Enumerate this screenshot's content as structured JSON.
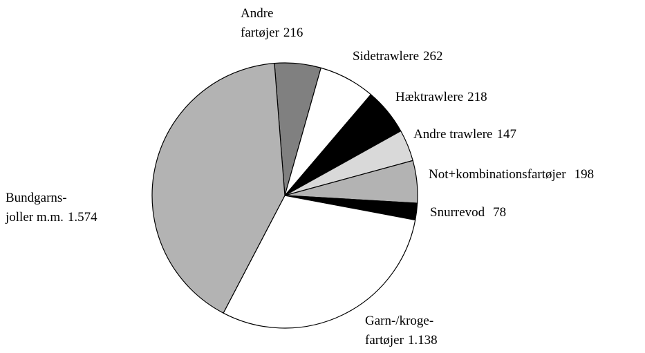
{
  "chart_data": {
    "type": "pie",
    "categories": [
      "Andre\nfartøjer",
      "Sidetrawlere",
      "Hæktrawlere",
      "Andre trawlere",
      "Not+kombinationsfartøjer",
      "Snurrevod",
      "Garn-/kroge-\nfartøjer",
      "Bundgarns-\njoller m.m."
    ],
    "values": [
      216,
      262,
      218,
      147,
      198,
      78,
      1138,
      1574
    ],
    "value_labels": [
      "216",
      "262",
      "218",
      "147",
      "198",
      "78",
      "1.138",
      "1.574"
    ],
    "colors": [
      "#808080",
      "#ffffff",
      "#000000",
      "#d9d9d9",
      "#b3b3b3",
      "#000000",
      "#ffffff",
      "#b3b3b3"
    ]
  }
}
